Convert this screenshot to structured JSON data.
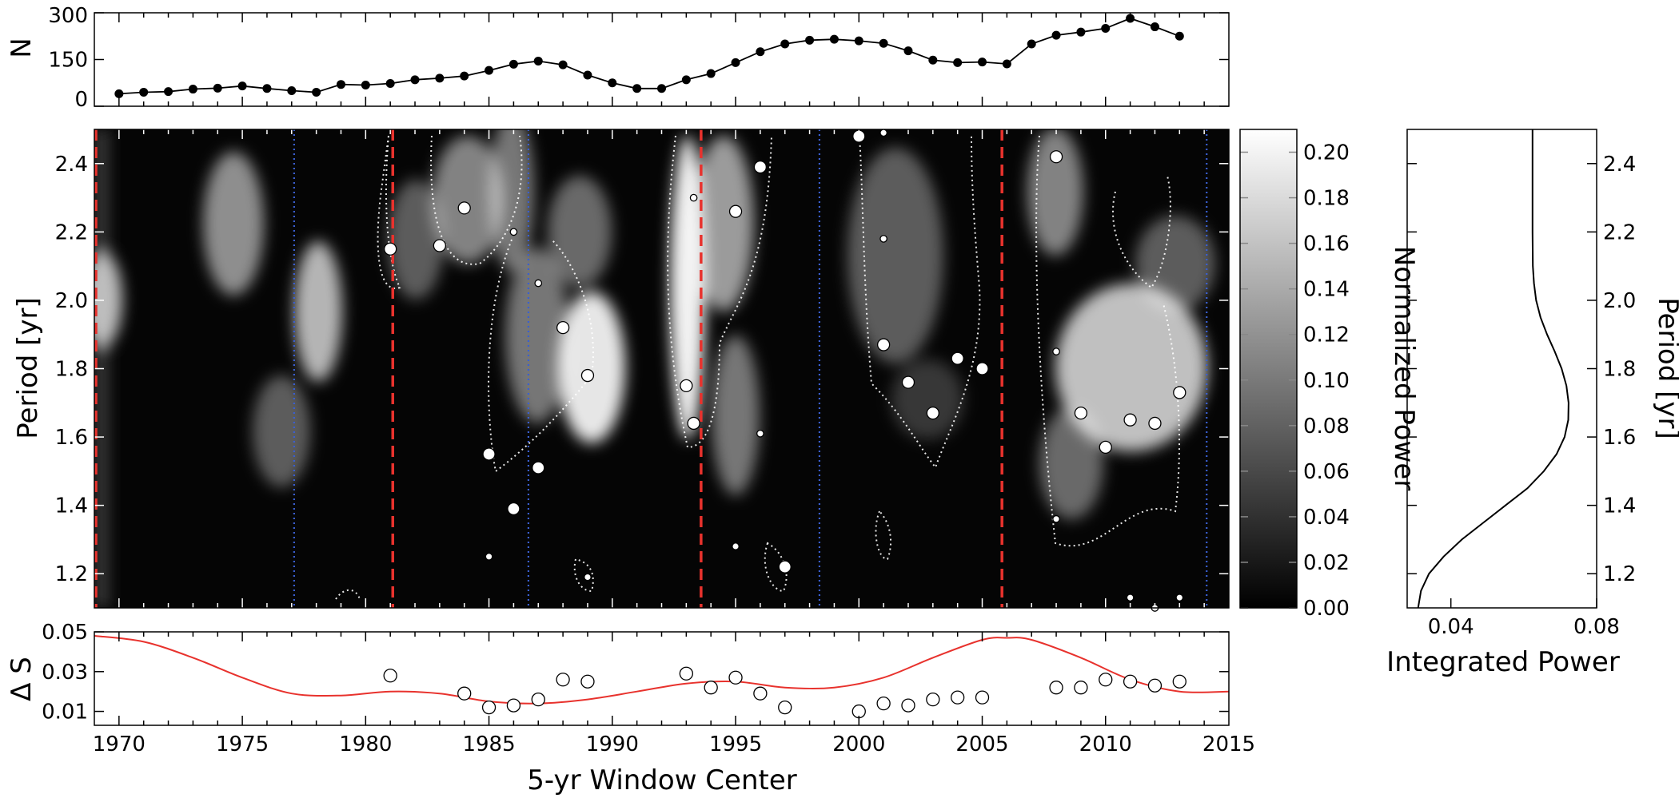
{
  "chart_data": [
    {
      "type": "line",
      "panel": "count",
      "ylabel": "N",
      "xlim": [
        1969,
        2015
      ],
      "ylim": [
        0,
        300
      ],
      "yticks": [
        "0",
        "150",
        "300"
      ],
      "x": [
        1970,
        1971,
        1972,
        1973,
        1974,
        1975,
        1976,
        1977,
        1978,
        1979,
        1980,
        1981,
        1982,
        1983,
        1984,
        1985,
        1986,
        1987,
        1988,
        1989,
        1990,
        1991,
        1992,
        1993,
        1994,
        1995,
        1996,
        1997,
        1998,
        1999,
        2000,
        2001,
        2002,
        2003,
        2004,
        2005,
        2006,
        2007,
        2008,
        2009,
        2010,
        2011,
        2012,
        2013
      ],
      "values": [
        40,
        45,
        47,
        55,
        58,
        65,
        57,
        50,
        45,
        70,
        68,
        73,
        85,
        90,
        97,
        115,
        135,
        145,
        133,
        100,
        75,
        57,
        57,
        85,
        105,
        140,
        175,
        200,
        212,
        215,
        210,
        202,
        178,
        148,
        140,
        142,
        136,
        200,
        228,
        238,
        250,
        282,
        255,
        225
      ]
    },
    {
      "type": "heatmap",
      "panel": "wavelet",
      "ylabel": "Period [yr]",
      "ylim": [
        1.1,
        2.5
      ],
      "yticks": [
        "1.2",
        "1.4",
        "1.6",
        "1.8",
        "2.0",
        "2.2",
        "2.4"
      ],
      "colorbar": {
        "label": "Normalized Power",
        "range": [
          0,
          0.21
        ],
        "ticks": [
          "0.00",
          "0.02",
          "0.04",
          "0.06",
          "0.08",
          "0.10",
          "0.12",
          "0.14",
          "0.16",
          "0.18",
          "0.20"
        ]
      },
      "dashed_red_lines": [
        1969,
        1981.1,
        1993.6,
        2005.8
      ],
      "dotted_blue_lines": [
        1977.1,
        1986.6,
        1998.4,
        2014.1
      ],
      "peaks": [
        {
          "x": 1981,
          "y": 2.15,
          "s": "m"
        },
        {
          "x": 1983,
          "y": 2.16,
          "s": "m"
        },
        {
          "x": 1984,
          "y": 2.27,
          "s": "m"
        },
        {
          "x": 1985,
          "y": 1.55,
          "s": "m"
        },
        {
          "x": 1985,
          "y": 1.25,
          "s": "s"
        },
        {
          "x": 1986,
          "y": 1.39,
          "s": "m"
        },
        {
          "x": 1986,
          "y": 2.2,
          "s": "s"
        },
        {
          "x": 1987,
          "y": 1.51,
          "s": "m"
        },
        {
          "x": 1987,
          "y": 2.05,
          "s": "s"
        },
        {
          "x": 1988,
          "y": 1.92,
          "s": "m"
        },
        {
          "x": 1989,
          "y": 1.78,
          "s": "m"
        },
        {
          "x": 1989,
          "y": 1.19,
          "s": "s"
        },
        {
          "x": 1993,
          "y": 1.75,
          "s": "m"
        },
        {
          "x": 1993.3,
          "y": 2.3,
          "s": "s"
        },
        {
          "x": 1993.3,
          "y": 1.64,
          "s": "m"
        },
        {
          "x": 1995,
          "y": 2.26,
          "s": "m"
        },
        {
          "x": 1995,
          "y": 1.28,
          "s": "s"
        },
        {
          "x": 1996,
          "y": 2.39,
          "s": "m"
        },
        {
          "x": 1996,
          "y": 1.61,
          "s": "s"
        },
        {
          "x": 1997,
          "y": 1.22,
          "s": "m"
        },
        {
          "x": 2000,
          "y": 2.48,
          "s": "m"
        },
        {
          "x": 2001,
          "y": 2.49,
          "s": "s"
        },
        {
          "x": 2001,
          "y": 2.18,
          "s": "s"
        },
        {
          "x": 2001,
          "y": 1.87,
          "s": "m"
        },
        {
          "x": 2002,
          "y": 1.76,
          "s": "m"
        },
        {
          "x": 2003,
          "y": 1.67,
          "s": "m"
        },
        {
          "x": 2004,
          "y": 1.83,
          "s": "m"
        },
        {
          "x": 2005,
          "y": 1.8,
          "s": "m"
        },
        {
          "x": 2008,
          "y": 2.42,
          "s": "m"
        },
        {
          "x": 2008,
          "y": 1.85,
          "s": "s"
        },
        {
          "x": 2008,
          "y": 1.36,
          "s": "s"
        },
        {
          "x": 2009,
          "y": 1.67,
          "s": "m"
        },
        {
          "x": 2010,
          "y": 1.57,
          "s": "m"
        },
        {
          "x": 2011,
          "y": 1.65,
          "s": "m"
        },
        {
          "x": 2011,
          "y": 1.13,
          "s": "s"
        },
        {
          "x": 2012,
          "y": 1.64,
          "s": "m"
        },
        {
          "x": 2012,
          "y": 1.1,
          "s": "s"
        },
        {
          "x": 2013,
          "y": 1.73,
          "s": "m"
        },
        {
          "x": 2013,
          "y": 1.13,
          "s": "s"
        }
      ]
    },
    {
      "type": "line",
      "panel": "integrated",
      "xlabel": "Integrated Power",
      "ylabel": "Period [yr]",
      "xlim": [
        0.028,
        0.08
      ],
      "xticks": [
        "0.04",
        "0.08"
      ],
      "ylim": [
        1.1,
        2.5
      ],
      "yticks": [
        "1.2",
        "1.4",
        "1.6",
        "1.8",
        "2.0",
        "2.2",
        "2.4"
      ],
      "period": [
        1.1,
        1.15,
        1.2,
        1.25,
        1.3,
        1.35,
        1.4,
        1.45,
        1.5,
        1.55,
        1.6,
        1.65,
        1.7,
        1.75,
        1.8,
        1.85,
        1.9,
        1.95,
        2.0,
        2.05,
        2.1,
        2.2,
        2.3,
        2.4,
        2.5
      ],
      "power": [
        0.031,
        0.0318,
        0.034,
        0.038,
        0.043,
        0.049,
        0.055,
        0.061,
        0.0655,
        0.069,
        0.0712,
        0.0722,
        0.0723,
        0.0717,
        0.0704,
        0.0685,
        0.0664,
        0.0646,
        0.0634,
        0.0628,
        0.0625,
        0.0624,
        0.0624,
        0.0624,
        0.0624
      ]
    },
    {
      "type": "scatter",
      "panel": "delta-s",
      "ylabel": "Δ S",
      "xlabel": "5-yr Window Center",
      "xlim": [
        1969,
        2015
      ],
      "xticks": [
        "1970",
        "1975",
        "1980",
        "1985",
        "1990",
        "1995",
        "2000",
        "2005",
        "2010",
        "2015"
      ],
      "ylim": [
        0.003,
        0.05
      ],
      "yticks": [
        "0.01",
        "0.03",
        "0.05"
      ],
      "points": {
        "x": [
          1981,
          1984,
          1985,
          1986,
          1987,
          1988,
          1989,
          1993,
          1994,
          1995,
          1996,
          1997,
          2000,
          2001,
          2002,
          2003,
          2004,
          2005,
          2008,
          2009,
          2010,
          2011,
          2012,
          2013
        ],
        "y": [
          0.028,
          0.019,
          0.012,
          0.013,
          0.016,
          0.026,
          0.025,
          0.029,
          0.022,
          0.027,
          0.019,
          0.012,
          0.01,
          0.014,
          0.013,
          0.016,
          0.017,
          0.017,
          0.022,
          0.022,
          0.026,
          0.025,
          0.023,
          0.025
        ]
      },
      "model_curve": {
        "color": "#e8322d",
        "x": [
          1969,
          1971,
          1973,
          1975,
          1977,
          1979,
          1981,
          1983,
          1985,
          1987,
          1989,
          1991,
          1993,
          1995,
          1997,
          1999,
          2001,
          2003,
          2005,
          2006,
          2007,
          2009,
          2011,
          2013,
          2015
        ],
        "y": [
          0.048,
          0.045,
          0.037,
          0.027,
          0.019,
          0.018,
          0.02,
          0.019,
          0.015,
          0.014,
          0.016,
          0.02,
          0.024,
          0.025,
          0.022,
          0.022,
          0.027,
          0.037,
          0.046,
          0.047,
          0.046,
          0.037,
          0.026,
          0.02,
          0.02
        ]
      }
    }
  ]
}
